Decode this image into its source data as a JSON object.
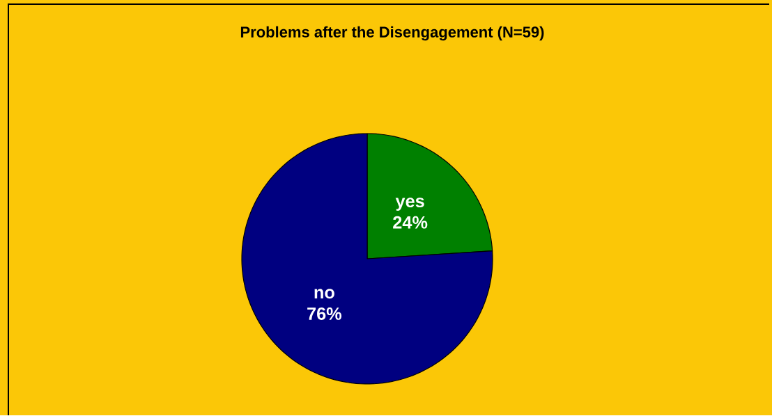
{
  "chart_data": {
    "type": "pie",
    "title": "Problems after the Disengagement (N=59)",
    "categories": [
      "yes",
      "no"
    ],
    "values": [
      24,
      76
    ],
    "colors": [
      "#008000",
      "#000080"
    ],
    "value_labels": [
      "24%",
      "76%"
    ],
    "data_labels": true
  }
}
